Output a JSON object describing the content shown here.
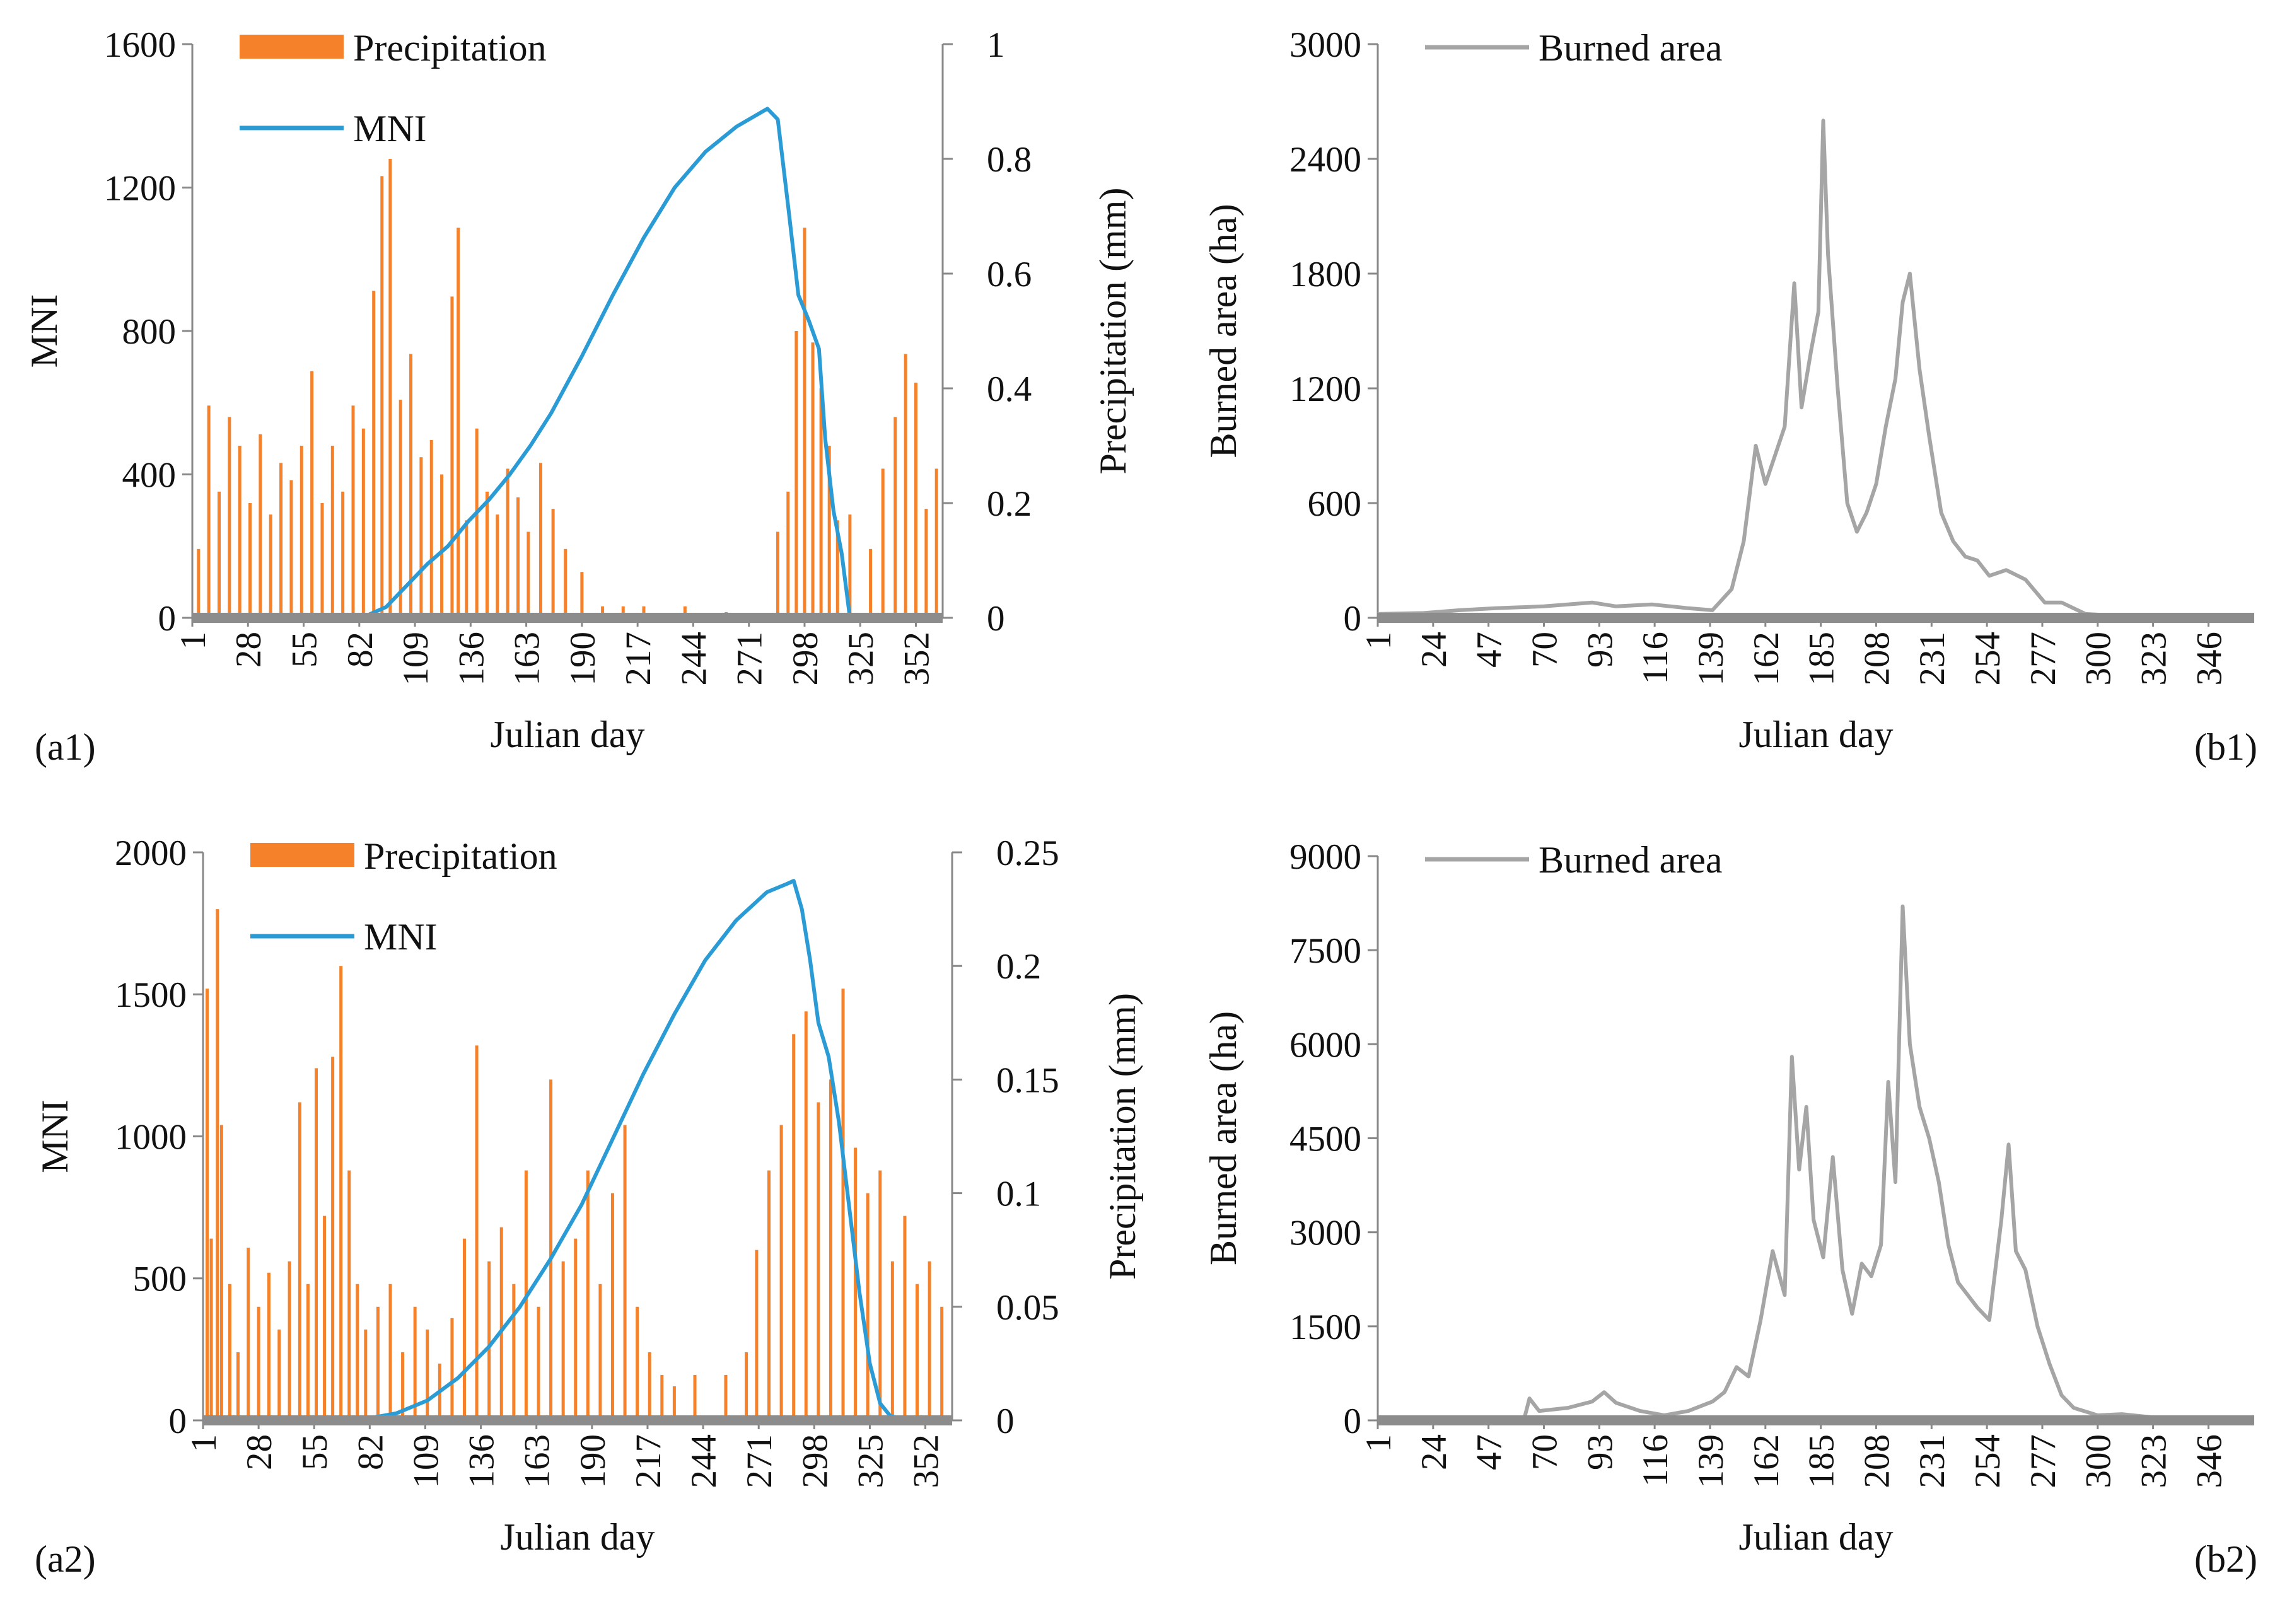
{
  "panels": {
    "a1": {
      "label": "(a1)"
    },
    "a2": {
      "label": "(a2)"
    },
    "b1": {
      "label": "(b1)"
    },
    "b2": {
      "label": "(b2)"
    }
  },
  "chart_data": [
    {
      "id": "a1",
      "type": "bar+line",
      "xlabel": "Julian day",
      "ylabel": "MNI",
      "ylabel_right": "Precipitation (mm)",
      "xlim": [
        1,
        365
      ],
      "ylim": [
        0,
        1600
      ],
      "ylim_right": [
        0,
        1
      ],
      "yticks": [
        "0",
        "400",
        "800",
        "1200",
        "1600"
      ],
      "yticks_right": [
        "0",
        "0.2",
        "0.4",
        "0.6",
        "0.8",
        "1"
      ],
      "xticks": [
        "1",
        "28",
        "55",
        "82",
        "109",
        "136",
        "163",
        "190",
        "217",
        "244",
        "271",
        "298",
        "325",
        "352"
      ],
      "legend": {
        "position": "top-left",
        "entries": [
          {
            "name": "Precipitation",
            "color": "#F5822A",
            "kind": "bar"
          },
          {
            "name": "MNI",
            "color": "#2A9BD5",
            "kind": "line"
          }
        ]
      },
      "series": [
        {
          "name": "MNI",
          "axis": "left",
          "color": "#2A9BD5",
          "x": [
            1,
            60,
            85,
            95,
            105,
            115,
            125,
            135,
            145,
            155,
            165,
            175,
            190,
            205,
            220,
            235,
            250,
            265,
            280,
            285,
            290,
            295,
            300,
            305,
            308,
            312,
            316,
            320,
            325,
            365
          ],
          "y": [
            0,
            0,
            5,
            30,
            90,
            150,
            200,
            270,
            330,
            400,
            480,
            570,
            730,
            900,
            1060,
            1200,
            1300,
            1370,
            1420,
            1390,
            1150,
            900,
            830,
            750,
            500,
            300,
            180,
            0,
            0,
            0
          ]
        },
        {
          "name": "Precipitation",
          "axis": "right",
          "color": "#F5822A",
          "x": [
            4,
            9,
            14,
            19,
            24,
            29,
            34,
            39,
            44,
            49,
            54,
            59,
            64,
            69,
            74,
            79,
            84,
            89,
            93,
            97,
            102,
            107,
            112,
            117,
            122,
            127,
            130,
            134,
            139,
            144,
            149,
            154,
            159,
            164,
            170,
            176,
            182,
            190,
            200,
            210,
            220,
            240,
            260,
            285,
            290,
            294,
            298,
            302,
            306,
            310,
            314,
            320,
            330,
            336,
            342,
            347,
            352,
            357,
            362
          ],
          "y": [
            0.12,
            0.37,
            0.22,
            0.35,
            0.3,
            0.2,
            0.32,
            0.18,
            0.27,
            0.24,
            0.3,
            0.43,
            0.2,
            0.3,
            0.22,
            0.37,
            0.33,
            0.57,
            0.77,
            0.8,
            0.38,
            0.46,
            0.28,
            0.31,
            0.25,
            0.56,
            0.68,
            0.17,
            0.33,
            0.22,
            0.18,
            0.26,
            0.21,
            0.15,
            0.27,
            0.19,
            0.12,
            0.08,
            0.02,
            0.02,
            0.02,
            0.02,
            0.01,
            0.15,
            0.22,
            0.5,
            0.68,
            0.48,
            0.4,
            0.3,
            0.17,
            0.18,
            0.12,
            0.26,
            0.35,
            0.46,
            0.41,
            0.19,
            0.26
          ]
        }
      ]
    },
    {
      "id": "b1",
      "type": "line",
      "xlabel": "Julian day",
      "ylabel": "Burned area (ha)",
      "xlim": [
        1,
        365
      ],
      "ylim": [
        0,
        3000
      ],
      "yticks": [
        "0",
        "600",
        "1200",
        "1800",
        "2400",
        "3000"
      ],
      "xticks": [
        "1",
        "24",
        "47",
        "70",
        "93",
        "116",
        "139",
        "162",
        "185",
        "208",
        "231",
        "254",
        "277",
        "300",
        "323",
        "346"
      ],
      "legend": {
        "position": "top-left",
        "entries": [
          {
            "name": "Burned area",
            "color": "#A5A5A5",
            "kind": "line"
          }
        ]
      },
      "series": [
        {
          "name": "Burned area",
          "color": "#A5A5A5",
          "x": [
            1,
            20,
            35,
            50,
            70,
            90,
            100,
            115,
            130,
            140,
            148,
            153,
            158,
            162,
            166,
            170,
            174,
            177,
            181,
            184,
            186,
            188,
            192,
            196,
            200,
            204,
            208,
            212,
            216,
            219,
            222,
            226,
            230,
            235,
            240,
            245,
            250,
            255,
            262,
            270,
            278,
            285,
            295,
            310,
            330,
            365
          ],
          "y": [
            20,
            25,
            40,
            50,
            60,
            80,
            60,
            70,
            50,
            40,
            150,
            400,
            900,
            700,
            850,
            1000,
            1750,
            1100,
            1400,
            1600,
            2600,
            1900,
            1200,
            600,
            450,
            550,
            700,
            1000,
            1250,
            1650,
            1800,
            1300,
            950,
            550,
            400,
            320,
            300,
            220,
            250,
            200,
            80,
            80,
            20,
            10,
            5,
            0
          ]
        }
      ]
    },
    {
      "id": "a2",
      "type": "bar+line",
      "xlabel": "Julian day",
      "ylabel": "MNI",
      "ylabel_right": "Precipitation (mm)",
      "xlim": [
        1,
        365
      ],
      "ylim": [
        0,
        2000
      ],
      "ylim_right": [
        0,
        0.25
      ],
      "yticks": [
        "0",
        "500",
        "1000",
        "1500",
        "2000"
      ],
      "yticks_right": [
        "0",
        "0.05",
        "0.1",
        "0.15",
        "0.2",
        "0.25"
      ],
      "xticks": [
        "1",
        "28",
        "55",
        "82",
        "109",
        "136",
        "163",
        "190",
        "217",
        "244",
        "271",
        "298",
        "325",
        "352"
      ],
      "legend": {
        "position": "top-left",
        "entries": [
          {
            "name": "Precipitation",
            "color": "#F5822A",
            "kind": "bar"
          },
          {
            "name": "MNI",
            "color": "#2A9BD5",
            "kind": "line"
          }
        ]
      },
      "series": [
        {
          "name": "MNI",
          "axis": "left",
          "color": "#2A9BD5",
          "x": [
            1,
            60,
            80,
            95,
            110,
            125,
            140,
            155,
            170,
            185,
            200,
            215,
            230,
            245,
            260,
            275,
            285,
            288,
            292,
            296,
            300,
            305,
            310,
            315,
            320,
            325,
            330,
            335,
            345,
            365
          ],
          "y": [
            0,
            0,
            5,
            25,
            70,
            150,
            260,
            400,
            570,
            760,
            990,
            1220,
            1430,
            1620,
            1760,
            1860,
            1890,
            1900,
            1800,
            1620,
            1400,
            1280,
            1050,
            750,
            450,
            200,
            60,
            15,
            0,
            0
          ]
        },
        {
          "name": "Precipitation",
          "axis": "right",
          "color": "#F5822A",
          "x": [
            3,
            5,
            8,
            10,
            14,
            18,
            23,
            28,
            33,
            38,
            43,
            48,
            52,
            56,
            60,
            64,
            68,
            72,
            76,
            80,
            86,
            92,
            98,
            104,
            110,
            116,
            122,
            128,
            134,
            140,
            146,
            152,
            158,
            164,
            170,
            176,
            182,
            188,
            194,
            200,
            206,
            212,
            218,
            224,
            230,
            240,
            255,
            265,
            270,
            276,
            282,
            288,
            294,
            300,
            306,
            312,
            318,
            324,
            330,
            336,
            342,
            348,
            354,
            360
          ],
          "y": [
            0.19,
            0.08,
            0.225,
            0.13,
            0.06,
            0.03,
            0.076,
            0.05,
            0.065,
            0.04,
            0.07,
            0.14,
            0.06,
            0.155,
            0.09,
            0.16,
            0.2,
            0.11,
            0.06,
            0.04,
            0.05,
            0.06,
            0.03,
            0.05,
            0.04,
            0.025,
            0.045,
            0.08,
            0.165,
            0.07,
            0.085,
            0.06,
            0.11,
            0.05,
            0.15,
            0.07,
            0.08,
            0.11,
            0.06,
            0.1,
            0.13,
            0.05,
            0.03,
            0.02,
            0.015,
            0.02,
            0.02,
            0.03,
            0.075,
            0.11,
            0.13,
            0.17,
            0.18,
            0.14,
            0.15,
            0.19,
            0.12,
            0.1,
            0.11,
            0.07,
            0.09,
            0.06,
            0.07,
            0.05
          ]
        }
      ]
    },
    {
      "id": "b2",
      "type": "line",
      "xlabel": "Julian day",
      "ylabel": "Burned area (ha)",
      "xlim": [
        1,
        365
      ],
      "ylim": [
        0,
        9000
      ],
      "yticks": [
        "0",
        "1500",
        "3000",
        "4500",
        "6000",
        "7500",
        "9000"
      ],
      "xticks": [
        "1",
        "24",
        "47",
        "70",
        "93",
        "116",
        "139",
        "162",
        "185",
        "208",
        "231",
        "254",
        "277",
        "300",
        "323",
        "346"
      ],
      "legend": {
        "position": "top-left",
        "entries": [
          {
            "name": "Burned area",
            "color": "#A5A5A5",
            "kind": "line"
          }
        ]
      },
      "series": [
        {
          "name": "Burned area",
          "color": "#A5A5A5",
          "x": [
            1,
            40,
            62,
            64,
            68,
            80,
            90,
            95,
            100,
            110,
            120,
            130,
            140,
            145,
            150,
            155,
            160,
            165,
            170,
            173,
            176,
            179,
            182,
            186,
            190,
            194,
            198,
            202,
            206,
            210,
            213,
            216,
            219,
            222,
            226,
            230,
            234,
            238,
            242,
            246,
            250,
            255,
            260,
            263,
            266,
            270,
            275,
            280,
            285,
            290,
            300,
            310,
            330,
            365
          ],
          "y": [
            20,
            30,
            50,
            350,
            150,
            200,
            300,
            450,
            280,
            150,
            80,
            150,
            300,
            450,
            850,
            700,
            1600,
            2700,
            2000,
            5800,
            4000,
            5000,
            3200,
            2600,
            4200,
            2400,
            1700,
            2500,
            2300,
            2800,
            5400,
            3800,
            8200,
            6000,
            5000,
            4500,
            3800,
            2800,
            2200,
            2000,
            1800,
            1600,
            3200,
            4400,
            2700,
            2400,
            1500,
            900,
            400,
            200,
            80,
            100,
            20,
            0
          ]
        }
      ]
    }
  ]
}
